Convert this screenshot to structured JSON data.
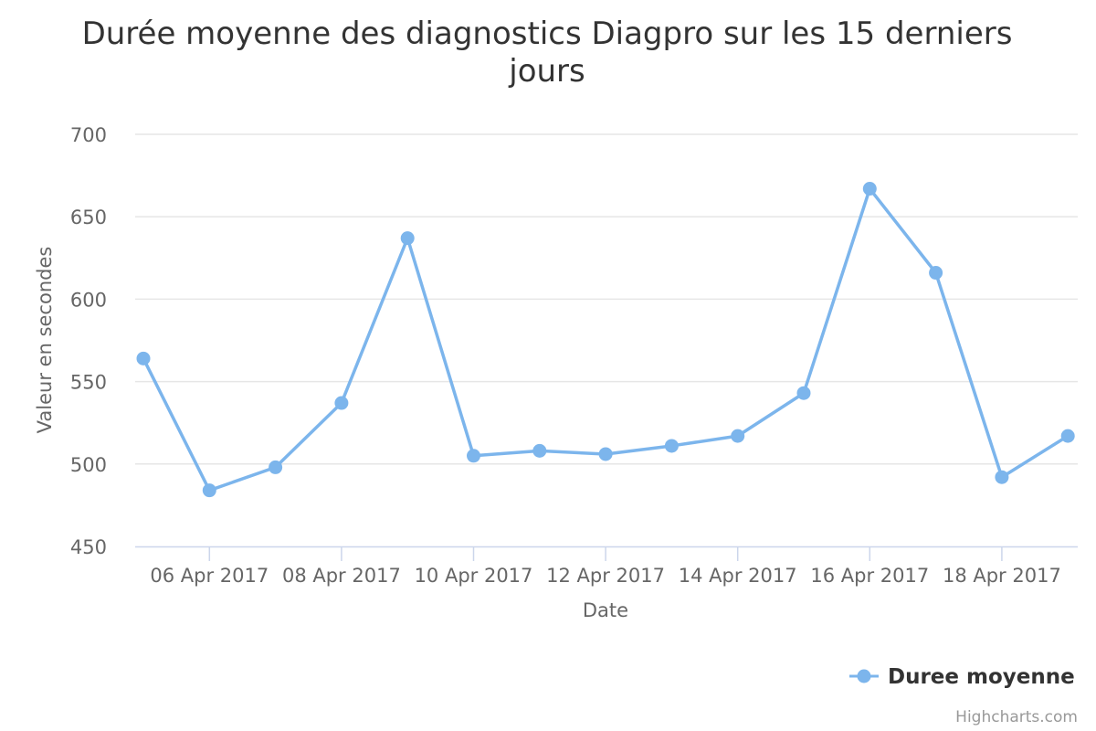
{
  "chart_data": {
    "type": "line",
    "title": "Durée moyenne des diagnostics Diagpro sur les 15 derniers jours",
    "title_lines": [
      "Durée moyenne des diagnostics Diagpro sur les 15 derniers",
      "jours"
    ],
    "xlabel": "Date",
    "ylabel": "Valeur en secondes",
    "ylim": [
      450,
      700
    ],
    "yticks": [
      450,
      500,
      550,
      600,
      650,
      700
    ],
    "x": [
      "05 Apr 2017",
      "06 Apr 2017",
      "07 Apr 2017",
      "08 Apr 2017",
      "09 Apr 2017",
      "10 Apr 2017",
      "11 Apr 2017",
      "12 Apr 2017",
      "13 Apr 2017",
      "14 Apr 2017",
      "15 Apr 2017",
      "16 Apr 2017",
      "17 Apr 2017",
      "18 Apr 2017",
      "19 Apr 2017"
    ],
    "xtick_labels": [
      "06 Apr 2017",
      "08 Apr 2017",
      "10 Apr 2017",
      "12 Apr 2017",
      "14 Apr 2017",
      "16 Apr 2017",
      "18 Apr 2017"
    ],
    "series": [
      {
        "name": "Duree moyenne",
        "color": "#7cb5ec",
        "values": [
          564,
          484,
          498,
          537,
          637,
          505,
          508,
          506,
          511,
          517,
          543,
          667,
          616,
          492,
          517
        ]
      }
    ],
    "grid": true,
    "legend_position": "bottom-right",
    "credits": "Highcharts.com"
  }
}
